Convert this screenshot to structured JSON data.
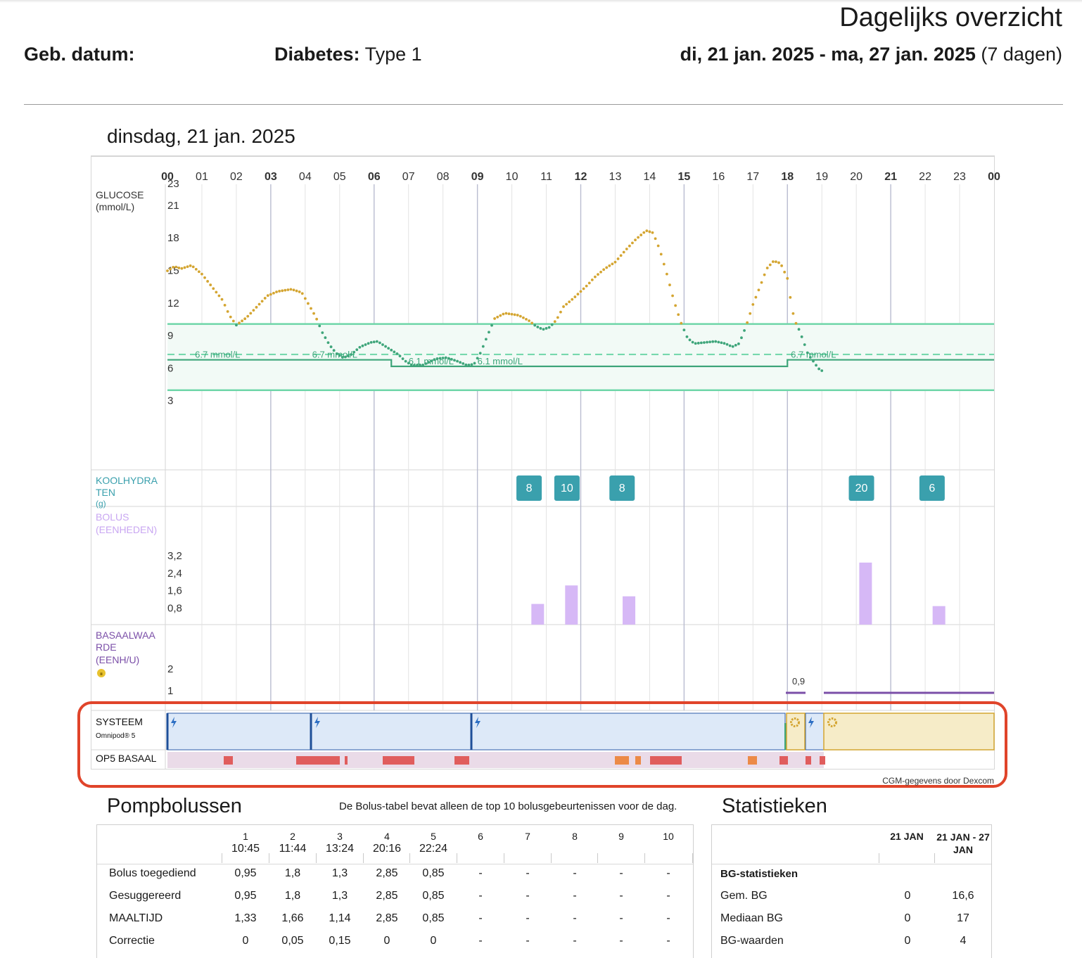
{
  "header": {
    "title": "Dagelijks overzicht",
    "birth_label": "Geb. datum:",
    "diabetes_label": "Diabetes:",
    "diabetes_value": "Type 1",
    "range": "di, 21 jan. 2025 - ma, 27 jan. 2025",
    "range_days": "(7 dagen)"
  },
  "day_title": "dinsdag, 21 jan. 2025",
  "chart": {
    "hours": [
      "00",
      "01",
      "02",
      "03",
      "04",
      "05",
      "06",
      "07",
      "08",
      "09",
      "10",
      "11",
      "12",
      "13",
      "14",
      "15",
      "16",
      "17",
      "18",
      "19",
      "20",
      "21",
      "22",
      "23",
      "00"
    ],
    "glucose_label": "GLUCOSE",
    "glucose_unit": "(mmol/L)",
    "glucose_ticks": [
      "23",
      "21",
      "18",
      "15",
      "12",
      "9",
      "6",
      "3"
    ],
    "target_labels": [
      "6.7 mmol/L",
      "6.7 mmol/L",
      "6.1 mmol/L",
      "6.1 mmol/L",
      "6.7 mmol/L"
    ],
    "carbs_label": "KOOLHYDRATEN (g)",
    "carbs": [
      {
        "hour": 10.5,
        "value": "8"
      },
      {
        "hour": 11.6,
        "value": "10"
      },
      {
        "hour": 13.2,
        "value": "8"
      },
      {
        "hour": 20.15,
        "value": "20"
      },
      {
        "hour": 22.2,
        "value": "6"
      }
    ],
    "bolus_label": "BOLUS (EENHEDEN)",
    "bolus_ticks": [
      "3,2",
      "2,4",
      "1,6",
      "0,8"
    ],
    "boluses": [
      {
        "hour": 10.75,
        "value": 0.95
      },
      {
        "hour": 11.73,
        "value": 1.8
      },
      {
        "hour": 13.4,
        "value": 1.3
      },
      {
        "hour": 20.27,
        "value": 2.85
      },
      {
        "hour": 22.4,
        "value": 0.85
      }
    ],
    "basal_label": "BASAALWAARDE (EENH/U)",
    "basal_ticks": [
      "2",
      "1"
    ],
    "basal_value_label": "0,9",
    "system_label": "SYSTEEM",
    "system_device": "Omnipod® 5",
    "op5_label": "OP5 BASAAL",
    "credit": "CGM-gegevens door Dexcom",
    "colors": {
      "glucose_high": "#d4a531",
      "glucose_in_range": "#3ea57a",
      "target": "#6fd6a9",
      "carbs": "#3aa0ad",
      "bolus": "#d6b8f6",
      "basal": "#7b4fa8",
      "auto": "#dde9f8",
      "manual": "#f6ecc8"
    }
  },
  "bolus_section": {
    "title": "Pompbolussen",
    "note": "De Bolus-tabel bevat alleen de top 10 bolusgebeurtenissen voor de dag.",
    "columns": [
      {
        "n": "1",
        "t": "10:45"
      },
      {
        "n": "2",
        "t": "11:44"
      },
      {
        "n": "3",
        "t": "13:24"
      },
      {
        "n": "4",
        "t": "20:16"
      },
      {
        "n": "5",
        "t": "22:24"
      },
      {
        "n": "6",
        "t": ""
      },
      {
        "n": "7",
        "t": ""
      },
      {
        "n": "8",
        "t": ""
      },
      {
        "n": "9",
        "t": ""
      },
      {
        "n": "10",
        "t": ""
      }
    ],
    "rows": [
      {
        "label": "Bolus toegediend",
        "values": [
          "0,95",
          "1,8",
          "1,3",
          "2,85",
          "0,85",
          "-",
          "-",
          "-",
          "-",
          "-"
        ]
      },
      {
        "label": "Gesuggereerd",
        "values": [
          "0,95",
          "1,8",
          "1,3",
          "2,85",
          "0,85",
          "-",
          "-",
          "-",
          "-",
          "-"
        ]
      },
      {
        "label": "MAALTIJD",
        "values": [
          "1,33",
          "1,66",
          "1,14",
          "2,85",
          "0,85",
          "-",
          "-",
          "-",
          "-",
          "-"
        ]
      },
      {
        "label": "Correctie",
        "values": [
          "0",
          "0,05",
          "0,15",
          "0",
          "0",
          "-",
          "-",
          "-",
          "-",
          "-"
        ]
      }
    ]
  },
  "stats_section": {
    "title": "Statistieken",
    "col1": "21 JAN",
    "col2": "21 JAN - 27 JAN",
    "group": "BG-statistieken",
    "rows": [
      {
        "label": "Gem. BG",
        "v1": "0",
        "v2": "16,6"
      },
      {
        "label": "Mediaan BG",
        "v1": "0",
        "v2": "17"
      },
      {
        "label": "BG-waarden",
        "v1": "0",
        "v2": "4"
      }
    ]
  }
}
